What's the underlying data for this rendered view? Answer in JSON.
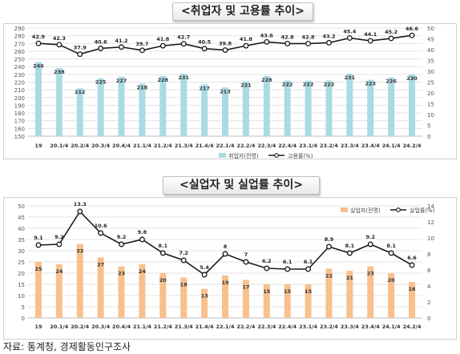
{
  "titles": {
    "chart1": "<취업자 및 고용률 추이>",
    "chart2": "<실업자 및 실업률 추이>"
  },
  "source": "자료: 통계청, 경제활동인구조사",
  "colors": {
    "bar1": "#a9dbe3",
    "bar2": "#f8c08d",
    "line": "#1a1a1a",
    "grid": "#e3e3e3",
    "axis_text": "#555555"
  },
  "chart_data": [
    {
      "type": "bar",
      "categories": [
        "19",
        "20.1/4",
        "20.2/4",
        "20.3/4",
        "20.4/4",
        "21.1/4",
        "21.2/4",
        "21.3/4",
        "21.4/4",
        "22.1/4",
        "22.2/4",
        "22.3/4",
        "22.4/4",
        "23.1/4",
        "23.2/4",
        "23.3/4",
        "23.4/4",
        "24.1/4",
        "24.2/4"
      ],
      "series": [
        {
          "name": "취업자(전명)",
          "kind": "bar",
          "axis": "left",
          "values": [
            246,
            238,
            212,
            225,
            227,
            218,
            228,
            231,
            217,
            213,
            221,
            228,
            222,
            222,
            222,
            231,
            223,
            226,
            230
          ]
        },
        {
          "name": "고용률(%)",
          "kind": "line",
          "axis": "right",
          "values": [
            42.9,
            42.3,
            37.9,
            40.6,
            41.2,
            39.7,
            41.8,
            42.7,
            40.5,
            39.8,
            41.8,
            43.6,
            42.8,
            42.8,
            43.2,
            45.4,
            44.1,
            45.2,
            46.6
          ]
        }
      ],
      "y_left": {
        "min": 150,
        "max": 290,
        "ticks": [
          150,
          160,
          170,
          180,
          190,
          200,
          210,
          220,
          230,
          240,
          250,
          260,
          270,
          280,
          290
        ]
      },
      "y_right": {
        "min": 0,
        "max": 50,
        "ticks": [
          0,
          5,
          10,
          15,
          20,
          25,
          30,
          35,
          40,
          45,
          50
        ]
      },
      "legend_position": "bottom-right",
      "grid": true
    },
    {
      "type": "bar",
      "categories": [
        "19",
        "20.1/4",
        "20.2/4",
        "20.3/4",
        "20.4/4",
        "21.1/4",
        "21.2/4",
        "21.3/4",
        "21.4/4",
        "22.1/4",
        "22.2/4",
        "22.3/4",
        "22.4/4",
        "23.1/4",
        "23.2/4",
        "23.3/4",
        "23.4/4",
        "24.1/4",
        "24.2/4"
      ],
      "series": [
        {
          "name": "실업자(전명)",
          "kind": "bar",
          "axis": "left",
          "values": [
            25,
            24,
            33,
            27,
            23,
            24,
            20,
            18,
            13,
            19,
            17,
            15,
            15,
            15,
            22,
            21,
            23,
            20,
            16
          ]
        },
        {
          "name": "실업률(%)",
          "kind": "line",
          "axis": "right",
          "values": [
            9.1,
            9.2,
            13.3,
            10.6,
            9.2,
            9.8,
            8.1,
            7.2,
            5.4,
            8,
            7,
            6.2,
            6.1,
            6.1,
            8.9,
            8.1,
            9.2,
            8.1,
            6.6
          ]
        }
      ],
      "y_left": {
        "min": 0,
        "max": 50,
        "ticks": [
          0,
          5,
          10,
          15,
          20,
          25,
          30,
          35,
          40,
          45,
          50
        ]
      },
      "y_right": {
        "min": 0,
        "max": 14,
        "ticks": [
          0,
          2,
          4,
          6,
          8,
          10,
          12,
          14
        ]
      },
      "legend_position": "top-right",
      "grid": true
    }
  ]
}
